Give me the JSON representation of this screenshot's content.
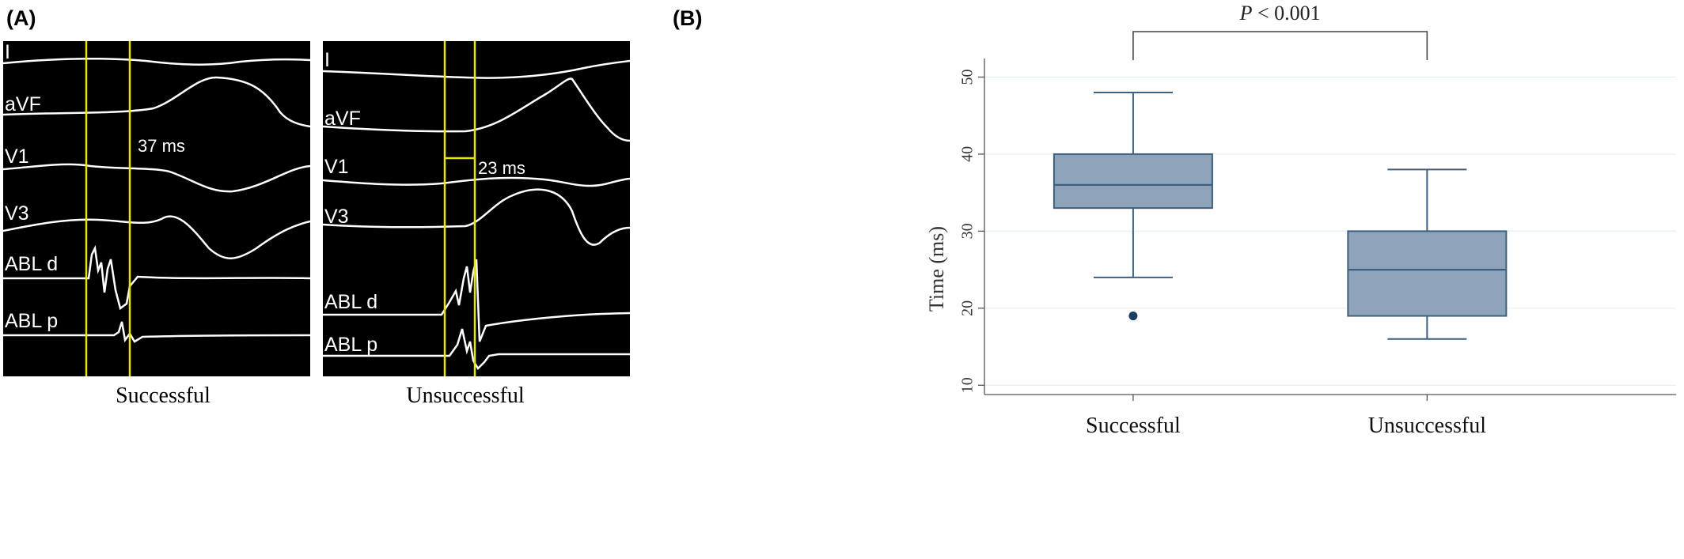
{
  "panel_a": {
    "label": "(A)",
    "successful": {
      "caption": "Successful",
      "leads": [
        "I",
        "aVF",
        "V1",
        "V3",
        "ABL d",
        "ABL p"
      ],
      "interval_label": "37 ms"
    },
    "unsuccessful": {
      "caption": "Unsuccessful",
      "leads": [
        "I",
        "aVF",
        "V1",
        "V3",
        "ABL d",
        "ABL p"
      ],
      "interval_label": "23 ms"
    },
    "colors": {
      "background": "#000000",
      "trace": "#ffffff",
      "marker": "#e6e600"
    }
  },
  "panel_b": {
    "label": "(B)"
  },
  "chart_data": {
    "type": "box",
    "categories": [
      "Successful",
      "Unsuccessful"
    ],
    "ylabel": "Time (ms)",
    "ylim": [
      9,
      52
    ],
    "yticks": [
      10,
      20,
      30,
      40,
      50
    ],
    "significance": "P < 0.001",
    "boxes": [
      {
        "category": "Successful",
        "whisker_low": 24,
        "q1": 33,
        "median": 36,
        "q3": 40,
        "whisker_high": 48,
        "outliers": [
          19
        ]
      },
      {
        "category": "Unsuccessful",
        "whisker_low": 16,
        "q1": 19,
        "median": 25,
        "q3": 30,
        "whisker_high": 38,
        "outliers": []
      }
    ],
    "grid": true,
    "colors": {
      "box_fill": "#8ea3b9",
      "box_stroke": "#3d5f80",
      "outlier": "#1c3d63",
      "grid": "#e6edf3"
    }
  }
}
